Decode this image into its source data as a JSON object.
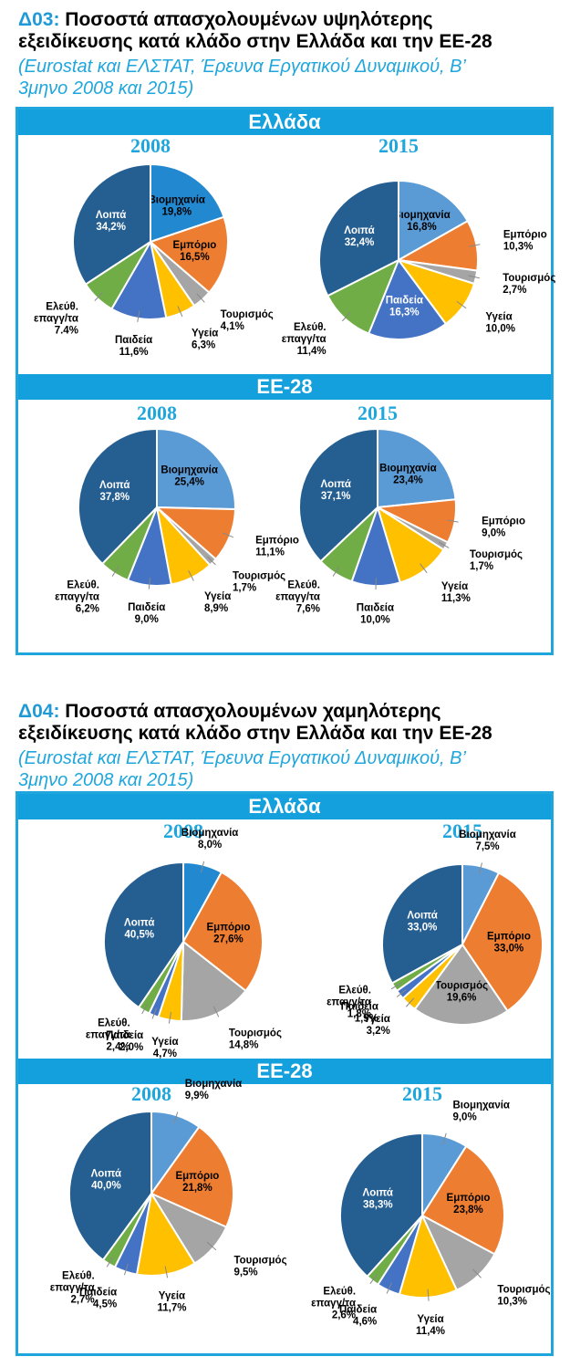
{
  "figures": [
    {
      "code": "Δ03:",
      "title_line1": "Ποσοστά απασχολουμένων υψηλότερης",
      "title_line2": "εξειδίκευσης κατά κλάδο στην Ελλάδα και την ΕΕ-28",
      "source_line1": "(Eurostat και ΕΛΣΤΑΤ, Έρευνα Εργατικού Δυναμικού, Β’",
      "source_line2": "3μηνο 2008 και 2015)",
      "sections": [
        {
          "label": "Ελλάδα"
        },
        {
          "label": "ΕΕ-28"
        }
      ]
    },
    {
      "code": "Δ04:",
      "title_line1": "Ποσοστά απασχολουμένων χαμηλότερης",
      "title_line2": "εξειδίκευσης κατά κλάδο στην Ελλάδα και την ΕΕ-28",
      "source_line1": "(Eurostat και ΕΛΣΤΑΤ, Έρευνα Εργατικού Δυναμικού, Β’",
      "source_line2": "3μηνο 2008 και 2015)",
      "sections": [
        {
          "label": "Ελλάδα"
        },
        {
          "label": "ΕΕ-28"
        }
      ]
    }
  ],
  "chart_data": [
    {
      "type": "pie",
      "figure": "Δ03",
      "group": "Ελλάδα",
      "title": "2008",
      "categories": [
        "Βιομηχανία",
        "Εμπόριο",
        "Τουρισμός",
        "Υγεία",
        "Παιδεία",
        "Ελεύθ. επαγγ/τα",
        "Λοιπά"
      ],
      "values": [
        19.8,
        16.5,
        4.1,
        6.3,
        11.6,
        7.4,
        34.2
      ],
      "value_labels": [
        "19,8%",
        "16,5%",
        "4,1%",
        "6,3%",
        "11,6%",
        "7.4%",
        "34,2%"
      ]
    },
    {
      "type": "pie",
      "figure": "Δ03",
      "group": "Ελλάδα",
      "title": "2015",
      "categories": [
        "Βιομηχανία",
        "Εμπόριο",
        "Τουρισμός",
        "Υγεία",
        "Παιδεία",
        "Ελεύθ. επαγγ/τα",
        "Λοιπά"
      ],
      "values": [
        16.8,
        10.3,
        2.7,
        10.0,
        16.3,
        11.4,
        32.4
      ],
      "value_labels": [
        "16,8%",
        "10,3%",
        "2,7%",
        "10,0%",
        "16,3%",
        "11,4%",
        "32,4%"
      ]
    },
    {
      "type": "pie",
      "figure": "Δ03",
      "group": "ΕΕ-28",
      "title": "2008",
      "categories": [
        "Βιομηχανία",
        "Εμπόριο",
        "Τουρισμός",
        "Υγεία",
        "Παιδεία",
        "Ελεύθ. επαγγ/τα",
        "Λοιπά"
      ],
      "values": [
        25.4,
        11.1,
        1.7,
        8.9,
        9.0,
        6.2,
        37.8
      ],
      "value_labels": [
        "25,4%",
        "11,1%",
        "1,7%",
        "8,9%",
        "9,0%",
        "6,2%",
        "37,8%"
      ]
    },
    {
      "type": "pie",
      "figure": "Δ03",
      "group": "ΕΕ-28",
      "title": "2015",
      "categories": [
        "Βιομηχανία",
        "Εμπόριο",
        "Τουρισμός",
        "Υγεία",
        "Παιδεία",
        "Ελεύθ. επαγγ/τα",
        "Λοιπά"
      ],
      "values": [
        23.4,
        9.0,
        1.7,
        11.3,
        10.0,
        7.6,
        37.1
      ],
      "value_labels": [
        "23,4%",
        "9,0%",
        "1,7%",
        "11,3%",
        "10,0%",
        "7,6%",
        "37,1%"
      ]
    },
    {
      "type": "pie",
      "figure": "Δ04",
      "group": "Ελλάδα",
      "title": "2008",
      "categories": [
        "Βιομηχανία",
        "Εμπόριο",
        "Τουρισμός",
        "Υγεία",
        "Παιδεία",
        "Ελεύθ. επαγγ/τα",
        "Λοιπά"
      ],
      "values": [
        8.0,
        27.6,
        14.8,
        4.7,
        2.0,
        2.4,
        40.5
      ],
      "value_labels": [
        "8,0%",
        "27,6%",
        "14,8%",
        "4,7%",
        "2,0%",
        "2,4%",
        "40,5%"
      ]
    },
    {
      "type": "pie",
      "figure": "Δ04",
      "group": "Ελλάδα",
      "title": "2015",
      "categories": [
        "Βιομηχανία",
        "Εμπόριο",
        "Τουρισμός",
        "Υγεία",
        "Παιδεία",
        "Ελεύθ. επαγγ/τα",
        "Λοιπά"
      ],
      "values": [
        7.5,
        33.0,
        19.6,
        3.2,
        1.9,
        1.8,
        33.0
      ],
      "value_labels": [
        "7,5%",
        "33,0%",
        "19,6%",
        "3,2%",
        "1,9%",
        "1,8%",
        "33,0%"
      ]
    },
    {
      "type": "pie",
      "figure": "Δ04",
      "group": "ΕΕ-28",
      "title": "2008",
      "categories": [
        "Βιομηχανία",
        "Εμπόριο",
        "Τουρισμός",
        "Υγεία",
        "Παιδεία",
        "Ελεύθ. επαγγ/τα",
        "Λοιπά"
      ],
      "values": [
        9.9,
        21.8,
        9.5,
        11.7,
        4.5,
        2.7,
        40.0
      ],
      "value_labels": [
        "9,9%",
        "21,8%",
        "9,5%",
        "11,7%",
        "4,5%",
        "2,7%",
        "40,0%"
      ]
    },
    {
      "type": "pie",
      "figure": "Δ04",
      "group": "ΕΕ-28",
      "title": "2015",
      "categories": [
        "Βιομηχανία",
        "Εμπόριο",
        "Τουρισμός",
        "Υγεία",
        "Παιδεία",
        "Ελεύθ. επαγγ/τα",
        "Λοιπά"
      ],
      "values": [
        9.0,
        23.8,
        10.3,
        11.4,
        4.6,
        2.6,
        38.3
      ],
      "value_labels": [
        "9,0%",
        "23,8%",
        "10,3%",
        "11,4%",
        "4,6%",
        "2,6%",
        "38,3%"
      ]
    }
  ],
  "colors": {
    "accent": "#1fa6dc",
    "band": "#14a0dc",
    "slices_2008_greece_high": [
      "#2288d0",
      "#ed7d31",
      "#a5a5a5",
      "#ffc000",
      "#4472c4",
      "#70ad47",
      "#255e91"
    ],
    "slices_default": [
      "#5b9bd5",
      "#ed7d31",
      "#a5a5a5",
      "#ffc000",
      "#4472c4",
      "#70ad47",
      "#255e91"
    ]
  }
}
